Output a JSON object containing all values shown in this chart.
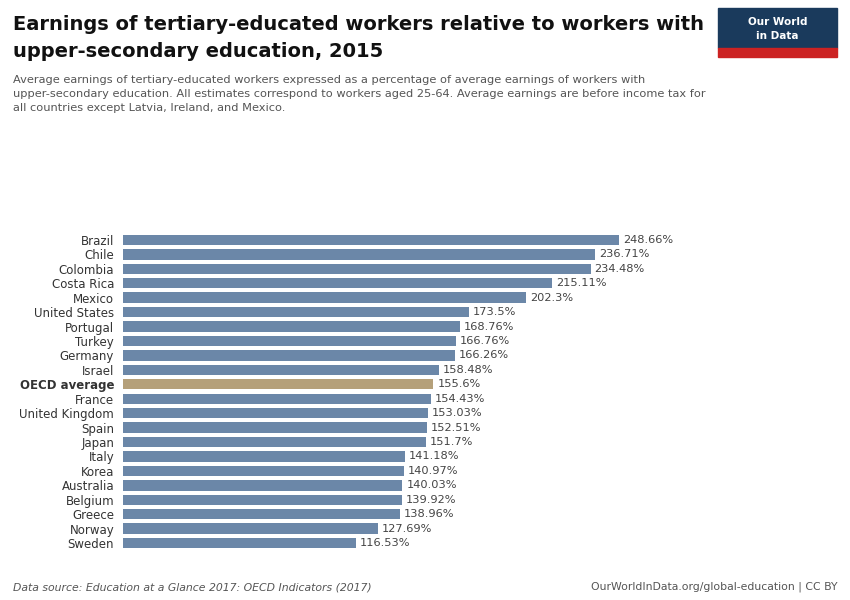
{
  "title_line1": "Earnings of tertiary-educated workers relative to workers with",
  "title_line2": "upper-secondary education, 2015",
  "subtitle": "Average earnings of tertiary-educated workers expressed as a percentage of average earnings of workers with\nupper-secondary education. All estimates correspond to workers aged 25-64. Average earnings are before income tax for\nall countries except Latvia, Ireland, and Mexico.",
  "footer_left": "Data source: Education at a Glance 2017: OECD Indicators (2017)",
  "footer_right": "OurWorldInData.org/global-education | CC BY",
  "categories": [
    "Brazil",
    "Chile",
    "Colombia",
    "Costa Rica",
    "Mexico",
    "United States",
    "Portugal",
    "Turkey",
    "Germany",
    "Israel",
    "OECD average",
    "France",
    "United Kingdom",
    "Spain",
    "Japan",
    "Italy",
    "Korea",
    "Australia",
    "Belgium",
    "Greece",
    "Norway",
    "Sweden"
  ],
  "values": [
    248.66,
    236.71,
    234.48,
    215.11,
    202.3,
    173.5,
    168.76,
    166.76,
    166.26,
    158.48,
    155.6,
    154.43,
    153.03,
    152.51,
    151.7,
    141.18,
    140.97,
    140.03,
    139.92,
    138.96,
    127.69,
    116.53
  ],
  "value_labels": [
    "248.66%",
    "236.71%",
    "234.48%",
    "215.11%",
    "202.3%",
    "173.5%",
    "168.76%",
    "166.76%",
    "166.26%",
    "158.48%",
    "155.6%",
    "154.43%",
    "153.03%",
    "152.51%",
    "151.7%",
    "141.18%",
    "140.97%",
    "140.03%",
    "139.92%",
    "138.96%",
    "127.69%",
    "116.53%"
  ],
  "oecd_index": 10,
  "bar_color_default": "#6b87a8",
  "bar_color_oecd": "#b5a07a",
  "background_color": "#ffffff",
  "title_fontsize": 14,
  "subtitle_fontsize": 8.2,
  "label_fontsize": 8.5,
  "value_fontsize": 8.2,
  "footer_fontsize": 7.8,
  "xlim": [
    0,
    290
  ],
  "logo_bg": "#1a3a5c",
  "logo_text_color": "#ffffff",
  "logo_red": "#cc2222"
}
